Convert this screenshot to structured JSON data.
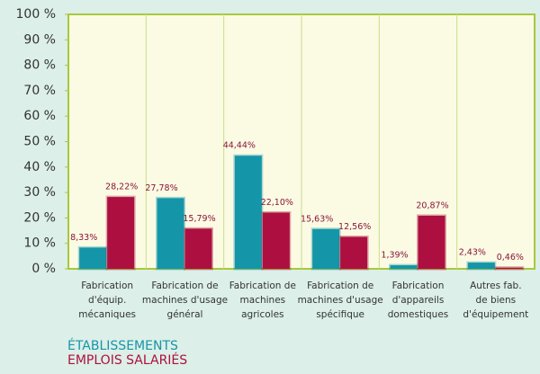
{
  "chart_data": {
    "type": "bar",
    "categories": [
      [
        "Fabrication",
        "d'équip.",
        "mécaniques"
      ],
      [
        "Fabrication de",
        "machines d'usage",
        "général"
      ],
      [
        "Fabrication de",
        "machines",
        "agricoles"
      ],
      [
        "Fabrication de",
        "machines d'usage",
        "spécifique"
      ],
      [
        "Fabrication",
        "d'appareils",
        "domestiques"
      ],
      [
        "Autres fab.",
        "de biens",
        "d'équipement"
      ]
    ],
    "series": [
      {
        "name": "ÉTABLISSEMENTS",
        "color": "#1596a8",
        "values": [
          8.33,
          27.78,
          44.44,
          15.63,
          1.39,
          2.43
        ],
        "value_labels": [
          "8,33%",
          "27,78%",
          "44,44%",
          "15,63%",
          "1,39%",
          "2,43%"
        ]
      },
      {
        "name": "EMPLOIS SALARIÉS",
        "color": "#ad1040",
        "values": [
          28.22,
          15.79,
          22.1,
          12.56,
          20.87,
          0.46
        ],
        "value_labels": [
          "28,22%",
          "15,79%",
          "22,10%",
          "12,56%",
          "20,87%",
          "0,46%"
        ]
      }
    ],
    "ylim": [
      0,
      100
    ],
    "yticks": [
      {
        "value": 0,
        "label": "0 %"
      },
      {
        "value": 10,
        "label": "10 %"
      },
      {
        "value": 20,
        "label": "20 %"
      },
      {
        "value": 30,
        "label": "30 %"
      },
      {
        "value": 40,
        "label": "40 %"
      },
      {
        "value": 50,
        "label": "50 %"
      },
      {
        "value": 60,
        "label": "60 %"
      },
      {
        "value": 70,
        "label": "70 %"
      },
      {
        "value": 80,
        "label": "80 %"
      },
      {
        "value": 90,
        "label": "90 %"
      },
      {
        "value": 100,
        "label": "100 %"
      }
    ],
    "legend": "bottom-left"
  }
}
